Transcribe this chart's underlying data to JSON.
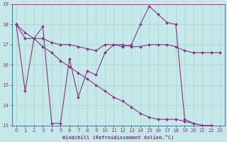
{
  "xlabel": "Windchill (Refroidissement éolien,°C)",
  "background_color": "#c5e8e8",
  "grid_color": "#aad4d4",
  "line_color": "#883388",
  "markersize": 2.0,
  "linewidth": 0.8,
  "xlim": [
    -0.5,
    23.5
  ],
  "ylim": [
    13,
    19
  ],
  "yticks": [
    13,
    14,
    15,
    16,
    17,
    18,
    19
  ],
  "xticks": [
    0,
    1,
    2,
    3,
    4,
    5,
    6,
    7,
    8,
    9,
    10,
    11,
    12,
    13,
    14,
    15,
    16,
    17,
    18,
    19,
    20,
    21,
    22,
    23
  ],
  "series1_x": [
    0,
    1,
    2,
    3,
    4,
    5,
    6,
    7,
    8,
    9,
    10,
    11,
    12,
    13,
    14,
    15,
    16,
    17,
    18,
    19,
    20,
    21,
    22,
    23
  ],
  "series1_y": [
    18.0,
    14.7,
    17.3,
    17.9,
    13.1,
    13.1,
    16.3,
    14.4,
    15.7,
    15.5,
    16.6,
    17.0,
    16.9,
    17.0,
    18.0,
    18.9,
    18.5,
    18.1,
    18.0,
    13.3,
    13.1,
    13.0,
    13.0,
    12.9
  ],
  "series2_x": [
    0,
    1,
    2,
    3,
    4,
    5,
    6,
    7,
    8,
    9,
    10,
    11,
    12,
    13,
    14,
    15,
    16,
    17,
    18,
    19,
    20,
    21,
    22,
    23
  ],
  "series2_y": [
    18.0,
    17.3,
    17.3,
    17.3,
    17.1,
    17.0,
    17.0,
    16.9,
    16.8,
    16.7,
    17.0,
    17.0,
    17.0,
    16.9,
    16.9,
    17.0,
    17.0,
    17.0,
    16.9,
    16.7,
    16.6,
    16.6,
    16.6,
    16.6
  ],
  "series3_x": [
    0,
    1,
    2,
    3,
    4,
    5,
    6,
    7,
    8,
    9,
    10,
    11,
    12,
    13,
    14,
    15,
    16,
    17,
    18,
    19,
    20,
    21,
    22,
    23
  ],
  "series3_y": [
    18.0,
    17.6,
    17.3,
    16.9,
    16.6,
    16.2,
    15.9,
    15.6,
    15.3,
    15.0,
    14.7,
    14.4,
    14.2,
    13.9,
    13.6,
    13.4,
    13.3,
    13.3,
    13.3,
    13.2,
    13.1,
    13.0,
    13.0,
    12.9
  ]
}
